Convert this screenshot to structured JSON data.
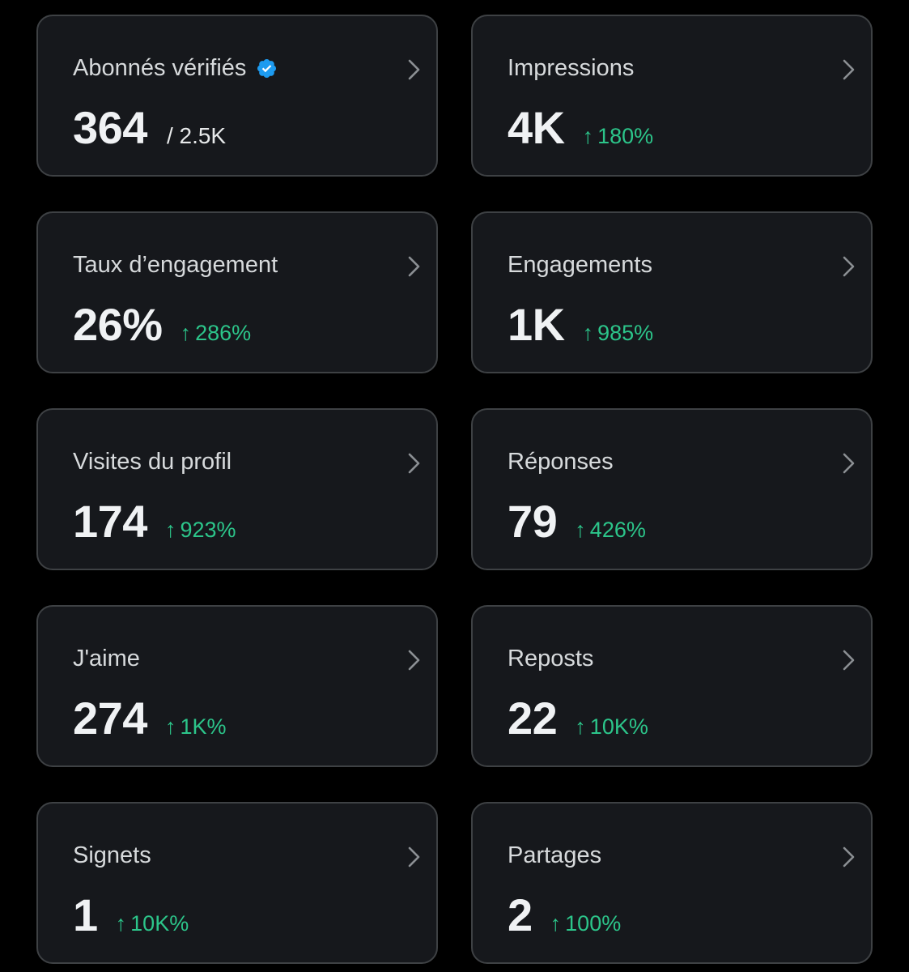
{
  "colors": {
    "background": "#000000",
    "card_background": "#16181c",
    "card_border": "#3e4144",
    "title_text": "#d7dadc",
    "value_text": "#f0f2f4",
    "positive_change": "#2cc58a",
    "verified_badge": "#1d9bf0"
  },
  "icons": {
    "chevron": "chevron-right-icon",
    "verified": "verified-badge-icon",
    "change_arrow": "↑"
  },
  "cards": [
    {
      "title": "Abonnés vérifiés",
      "value": "364",
      "total": "/ 2.5K"
    },
    {
      "title": "Impressions",
      "value": "4K",
      "change": "180%"
    },
    {
      "title": "Taux d’engagement",
      "value": "26%",
      "change": "286%"
    },
    {
      "title": "Engagements",
      "value": "1K",
      "change": "985%"
    },
    {
      "title": "Visites du profil",
      "value": "174",
      "change": "923%"
    },
    {
      "title": "Réponses",
      "value": "79",
      "change": "426%"
    },
    {
      "title": "J'aime",
      "value": "274",
      "change": "1K%"
    },
    {
      "title": "Reposts",
      "value": "22",
      "change": "10K%"
    },
    {
      "title": "Signets",
      "value": "1",
      "change": "10K%"
    },
    {
      "title": "Partages",
      "value": "2",
      "change": "100%"
    }
  ]
}
